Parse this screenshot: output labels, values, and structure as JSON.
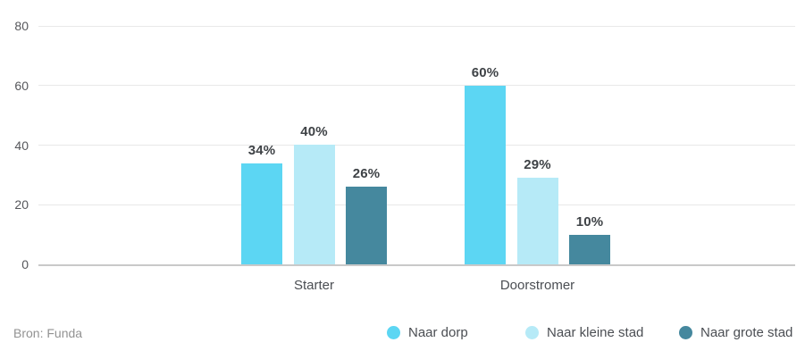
{
  "chart_data": {
    "type": "bar",
    "title": "",
    "categories": [
      "Starter",
      "Doorstromer"
    ],
    "series": [
      {
        "name": "Naar dorp",
        "color": "#5cd6f3",
        "values": [
          34,
          60
        ],
        "labels": [
          "34%",
          "60%"
        ]
      },
      {
        "name": "Naar kleine stad",
        "color": "#b6eaf7",
        "values": [
          40,
          29
        ],
        "labels": [
          "40%",
          "29%"
        ]
      },
      {
        "name": "Naar grote stad",
        "color": "#45889e",
        "values": [
          26,
          10
        ],
        "labels": [
          "26%",
          "10%"
        ]
      }
    ],
    "yticks": [
      0,
      20,
      40,
      60,
      80
    ],
    "ylim": [
      0,
      80
    ],
    "value_suffix": "%",
    "grid": true,
    "legend_position": "bottom-right",
    "gridline_color": "#e8e8e8",
    "baseline_color": "#c9c9c9"
  },
  "footer": {
    "source_label": "Bron: Funda"
  }
}
